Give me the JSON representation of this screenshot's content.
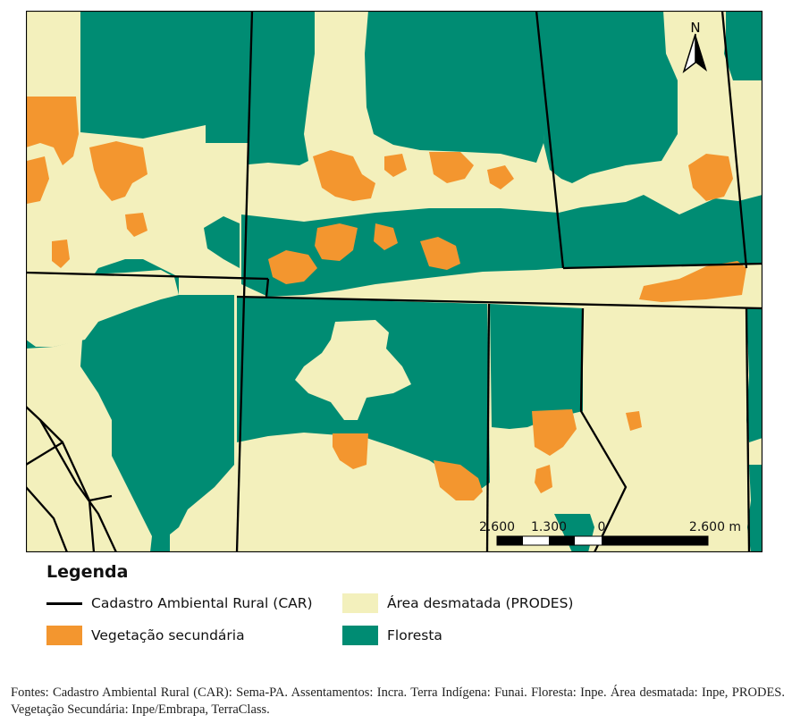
{
  "map": {
    "north_label": "N",
    "scalebar": {
      "labels": [
        "2.600",
        "1.300",
        "0",
        "2.600 m"
      ]
    }
  },
  "legend": {
    "title": "Legenda",
    "items": [
      {
        "label": "Cadastro Ambiental Rural (CAR)",
        "kind": "line",
        "color": "#000000"
      },
      {
        "label": "Área desmatada (PRODES)",
        "kind": "fill",
        "color": "#f3f0bc"
      },
      {
        "label": "Vegetação secundária",
        "kind": "fill",
        "color": "#f3962f"
      },
      {
        "label": "Floresta",
        "kind": "fill",
        "color": "#008c73"
      }
    ]
  },
  "sources": "Fontes: Cadastro Ambiental Rural (CAR): Sema-PA. Assentamentos: Incra. Terra Indígena: Funai. Floresta: Inpe. Área desmatada: Inpe, PRODES. Vegetação Secundária: Inpe/Embrapa, TerraClass."
}
